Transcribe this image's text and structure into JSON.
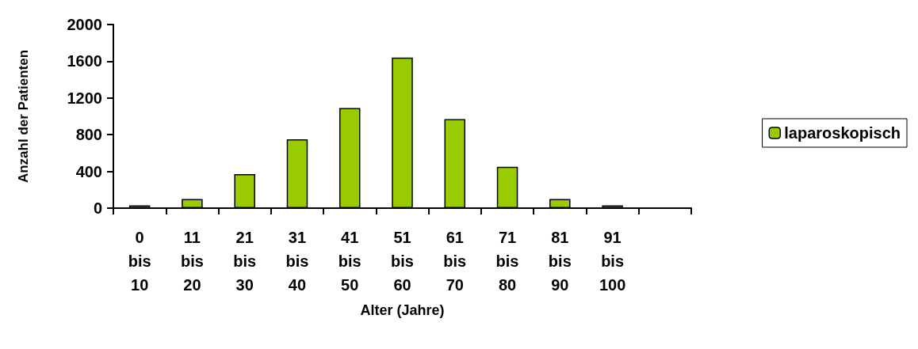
{
  "chart_data": {
    "type": "bar",
    "xlabel": "Alter (Jahre)",
    "ylabel": "Anzahl der Patienten",
    "categories": [
      "0 bis 10",
      "11 bis 20",
      "21 bis 30",
      "31 bis 40",
      "41 bis 50",
      "51 bis 60",
      "61 bis 70",
      "71 bis 80",
      "81 bis 90",
      "91 bis 100",
      null
    ],
    "series": [
      {
        "name": "laparoskopisch",
        "color": "#99cc00",
        "values": [
          30,
          100,
          370,
          750,
          1090,
          1640,
          970,
          450,
          100,
          30,
          null
        ]
      }
    ],
    "ylim": [
      0,
      2000
    ],
    "yticks": [
      0,
      400,
      800,
      1200,
      1600,
      2000
    ],
    "grid": false,
    "legend": "right"
  }
}
